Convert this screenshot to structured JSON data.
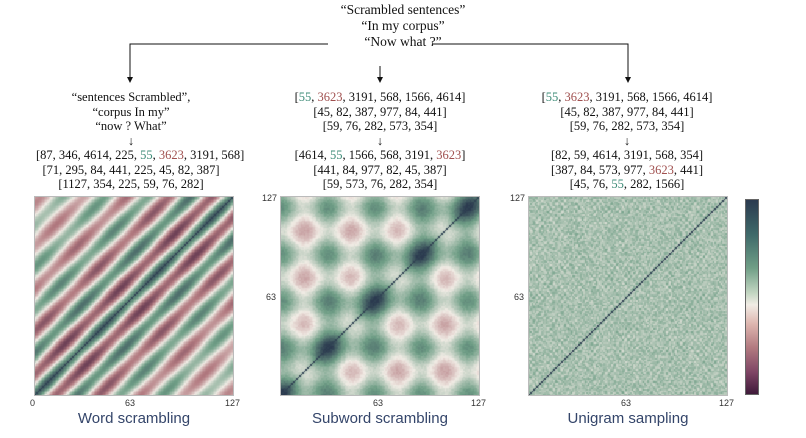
{
  "root": {
    "lines": [
      "“Scrambled sentences”",
      "“In my corpus”",
      "“Now what ?”"
    ]
  },
  "columns": [
    {
      "id": "word",
      "text_lines": [
        "“sentences Scrambled”,",
        "“corpus In my”",
        "“now ? What”"
      ],
      "rows_a": [
        [
          {
            "t": "[87, 346, 4614, 225, "
          },
          {
            "t": "55",
            "c": "teal"
          },
          {
            "t": ", "
          },
          {
            "t": "3623",
            "c": "red"
          },
          {
            "t": ", 3191, 568]"
          }
        ],
        [
          {
            "t": "[71, 295, 84, 441, 225, 45, 82, 387]"
          }
        ],
        [
          {
            "t": "[1127, 354, 225, 59, 76, 282]"
          }
        ]
      ],
      "caption": "Word scrambling",
      "ticks": {
        "x0": "0",
        "xmid": "63",
        "xmax": "127",
        "y63": "",
        "y127": ""
      },
      "pattern": "word"
    },
    {
      "id": "subword",
      "rows_top": [
        [
          {
            "t": "["
          },
          {
            "t": "55",
            "c": "teal"
          },
          {
            "t": ", "
          },
          {
            "t": "3623",
            "c": "red"
          },
          {
            "t": ", 3191, 568, 1566, 4614]"
          }
        ],
        [
          {
            "t": "[45, 82, 387, 977, 84, 441]"
          }
        ],
        [
          {
            "t": "[59, 76, 282, 573, 354]"
          }
        ]
      ],
      "rows_b": [
        [
          {
            "t": "[4614, "
          },
          {
            "t": "55",
            "c": "teal"
          },
          {
            "t": ", 1566, 568, 3191, "
          },
          {
            "t": "3623",
            "c": "red"
          },
          {
            "t": "]"
          }
        ],
        [
          {
            "t": "[441, 84, 977, 82, 45, 387]"
          }
        ],
        [
          {
            "t": "[59, 573, 76, 282, 354]"
          }
        ]
      ],
      "caption": "Subword scrambling",
      "ticks": {
        "xmid": "63",
        "xmax": "127",
        "y63": "63",
        "y127": "127"
      },
      "pattern": "subword"
    },
    {
      "id": "unigram",
      "rows_top": [
        [
          {
            "t": "["
          },
          {
            "t": "55",
            "c": "teal"
          },
          {
            "t": ", "
          },
          {
            "t": "3623",
            "c": "red"
          },
          {
            "t": ", 3191, 568, 1566, 4614]"
          }
        ],
        [
          {
            "t": "[45, 82, 387, 977, 84, 441]"
          }
        ],
        [
          {
            "t": "[59, 76, 282, 573, 354]"
          }
        ]
      ],
      "rows_b": [
        [
          {
            "t": "[82, 59, 4614, 3191, 568, 354]"
          }
        ],
        [
          {
            "t": "[387, 84, 573, 977, "
          },
          {
            "t": "3623",
            "c": "red"
          },
          {
            "t": ", 441]"
          }
        ],
        [
          {
            "t": "[45, 76, "
          },
          {
            "t": "55",
            "c": "teal"
          },
          {
            "t": ", 282, 1566]"
          }
        ]
      ],
      "caption": "Unigram sampling",
      "ticks": {
        "xmid": "63",
        "xmax": "127",
        "y63": "63",
        "y127": "127"
      },
      "pattern": "unigram"
    }
  ],
  "arrow_glyph": "↓",
  "colors": {
    "red": "#a0504f",
    "teal": "#3f8c78",
    "caption": "#34456a",
    "colorbar_stops": [
      "#2b3a4f",
      "#6f9e86",
      "#f1ece5",
      "#b27a80",
      "#3f1a3a"
    ]
  }
}
